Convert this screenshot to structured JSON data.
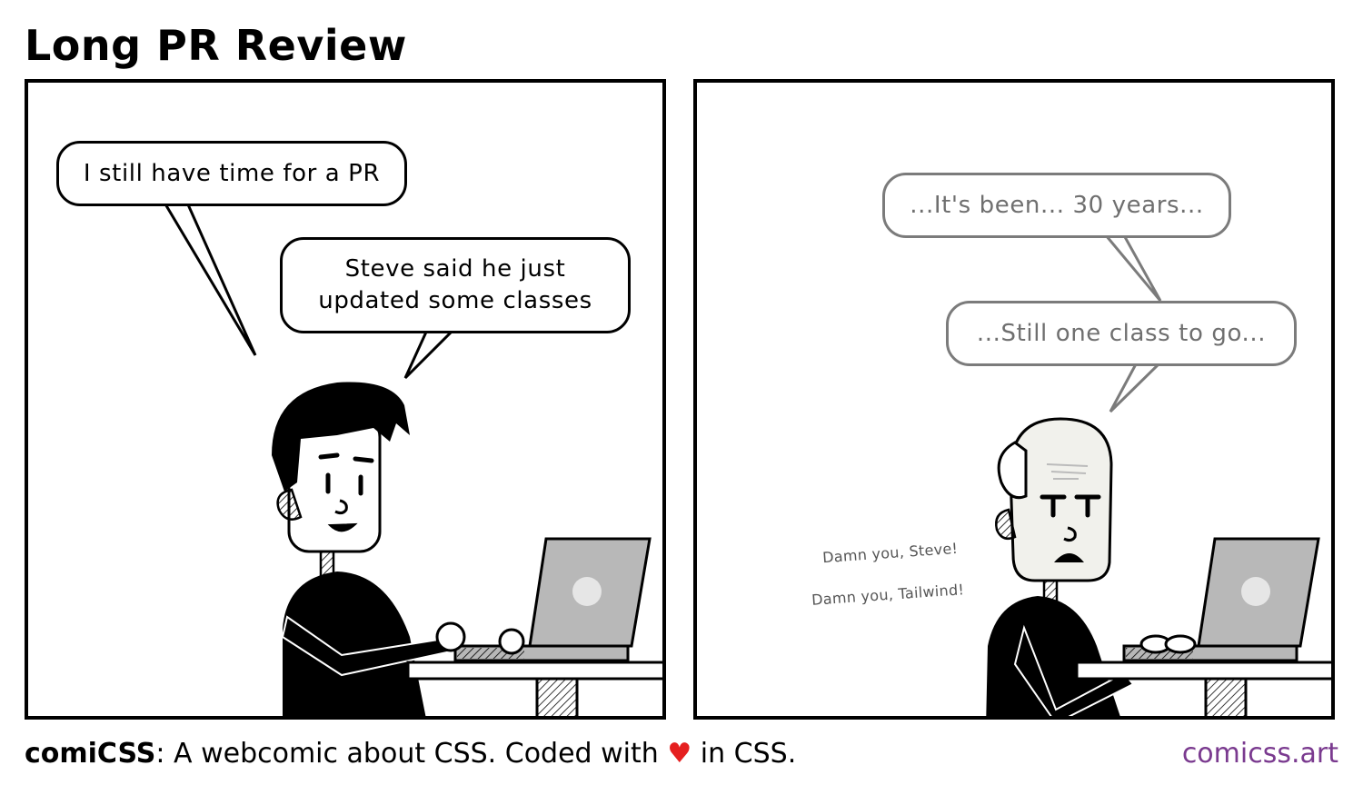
{
  "comic": {
    "title": "Long PR Review",
    "panel1": {
      "bubble1": "I still have time for a PR",
      "bubble2": "Steve said he just updated some classes"
    },
    "panel2": {
      "bubble1": "...It's been... 30 years...",
      "bubble2": "...Still one class to go...",
      "mutter1": "Damn you, Steve!",
      "mutter2": "Damn you, Tailwind!"
    }
  },
  "footer": {
    "brand": "comiCSS",
    "tagline_part1": ": A webcomic about CSS. Coded with ",
    "heart": "♥",
    "tagline_part2": " in CSS.",
    "site": "comicss.art"
  },
  "colors": {
    "heart": "#e51f1f",
    "site_link": "#7a3a8f",
    "faded_bubble": "#7b7b7b"
  }
}
